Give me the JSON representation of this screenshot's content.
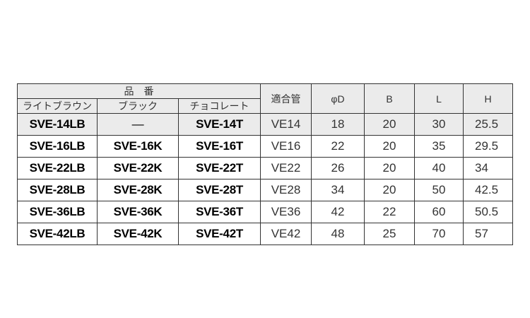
{
  "header": {
    "part_number": "品　番",
    "colors": [
      "ライトブラウン",
      "ブラック",
      "チョコレート"
    ],
    "pipe": "適合管",
    "d": "φD",
    "b": "B",
    "l": "L",
    "h": "H"
  },
  "rows": [
    {
      "lb": "SVE-14LB",
      "k": "—",
      "t": "SVE-14T",
      "pipe": "VE14",
      "d": "18",
      "b": "20",
      "l": "30",
      "h": "25.5"
    },
    {
      "lb": "SVE-16LB",
      "k": "SVE-16K",
      "t": "SVE-16T",
      "pipe": "VE16",
      "d": "22",
      "b": "20",
      "l": "35",
      "h": "29.5"
    },
    {
      "lb": "SVE-22LB",
      "k": "SVE-22K",
      "t": "SVE-22T",
      "pipe": "VE22",
      "d": "26",
      "b": "20",
      "l": "40",
      "h": "34"
    },
    {
      "lb": "SVE-28LB",
      "k": "SVE-28K",
      "t": "SVE-28T",
      "pipe": "VE28",
      "d": "34",
      "b": "20",
      "l": "50",
      "h": "42.5"
    },
    {
      "lb": "SVE-36LB",
      "k": "SVE-36K",
      "t": "SVE-36T",
      "pipe": "VE36",
      "d": "42",
      "b": "22",
      "l": "60",
      "h": "50.5"
    },
    {
      "lb": "SVE-42LB",
      "k": "SVE-42K",
      "t": "SVE-42T",
      "pipe": "VE42",
      "d": "48",
      "b": "25",
      "l": "70",
      "h": "57"
    }
  ]
}
